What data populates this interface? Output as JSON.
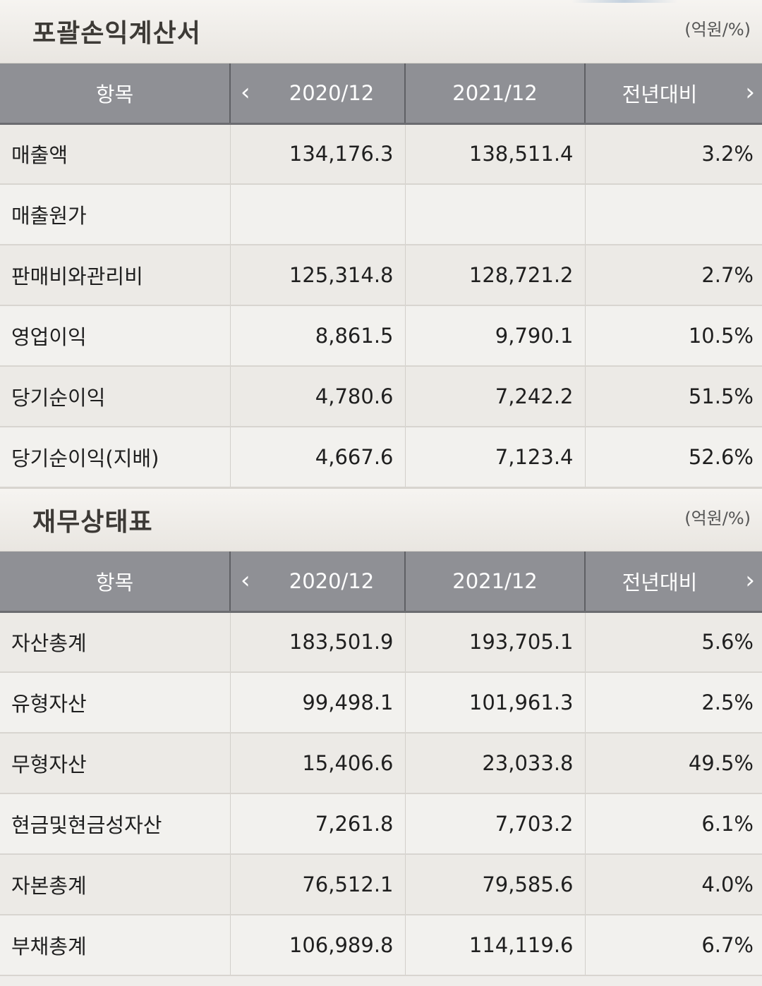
{
  "income_statement": {
    "title": "포괄손익계산서",
    "unit": "(억원/%)",
    "headers": {
      "item": "항목",
      "period1": "2020/12",
      "period2": "2021/12",
      "yoy": "전년대비"
    },
    "rows": [
      {
        "name": "매출액",
        "v1": "134,176.3",
        "v2": "138,511.4",
        "yoy": "3.2%"
      },
      {
        "name": "매출원가",
        "v1": "",
        "v2": "",
        "yoy": ""
      },
      {
        "name": "판매비와관리비",
        "v1": "125,314.8",
        "v2": "128,721.2",
        "yoy": "2.7%"
      },
      {
        "name": "영업이익",
        "v1": "8,861.5",
        "v2": "9,790.1",
        "yoy": "10.5%"
      },
      {
        "name": "당기순이익",
        "v1": "4,780.6",
        "v2": "7,242.2",
        "yoy": "51.5%"
      },
      {
        "name": "당기순이익(지배)",
        "v1": "4,667.6",
        "v2": "7,123.4",
        "yoy": "52.6%"
      }
    ]
  },
  "balance_sheet": {
    "title": "재무상태표",
    "unit": "(억원/%)",
    "headers": {
      "item": "항목",
      "period1": "2020/12",
      "period2": "2021/12",
      "yoy": "전년대비"
    },
    "rows": [
      {
        "name": "자산총계",
        "v1": "183,501.9",
        "v2": "193,705.1",
        "yoy": "5.6%"
      },
      {
        "name": "유형자산",
        "v1": "99,498.1",
        "v2": "101,961.3",
        "yoy": "2.5%"
      },
      {
        "name": "무형자산",
        "v1": "15,406.6",
        "v2": "23,033.8",
        "yoy": "49.5%"
      },
      {
        "name": "현금및현금성자산",
        "v1": "7,261.8",
        "v2": "7,703.2",
        "yoy": "6.1%"
      },
      {
        "name": "자본총계",
        "v1": "76,512.1",
        "v2": "79,585.6",
        "yoy": "4.0%"
      },
      {
        "name": "부채총계",
        "v1": "106,989.8",
        "v2": "114,119.6",
        "yoy": "6.7%"
      }
    ]
  },
  "icons": {
    "prev": "chevron-left-icon",
    "next": "chevron-right-icon"
  },
  "colors": {
    "header_bg": "#8f9095",
    "row_odd": "#eceae6",
    "row_even": "#f2f1ee"
  }
}
